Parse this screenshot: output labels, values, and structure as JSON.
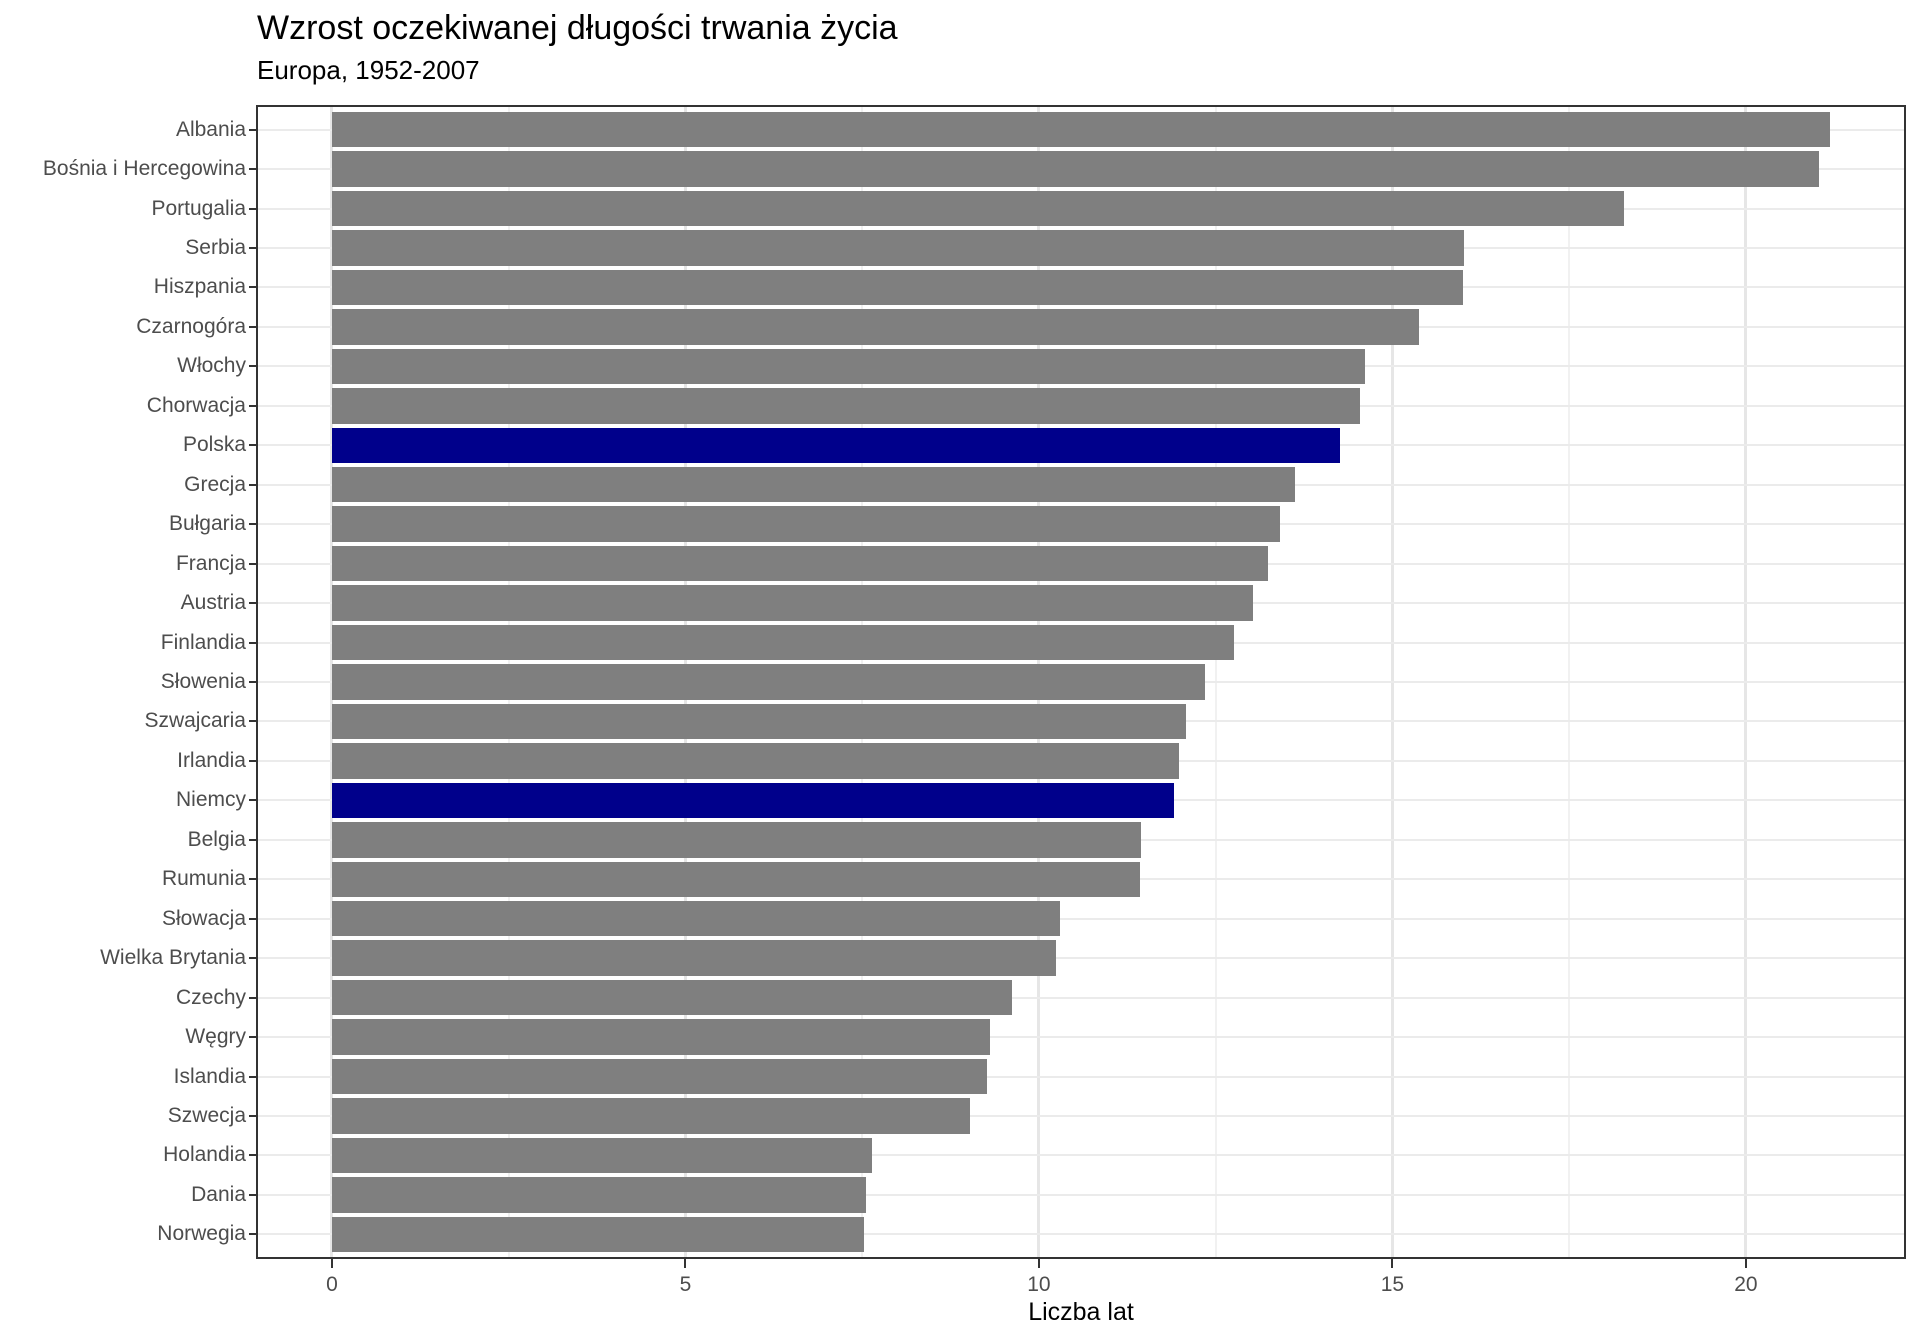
{
  "title": "Wzrost oczekiwanej długości trwania życia",
  "subtitle": "Europa, 1952-2007",
  "chart_data": {
    "type": "bar",
    "orientation": "horizontal",
    "title": "Wzrost oczekiwanej długości trwania życia",
    "subtitle": "Europa, 1952-2007",
    "xlabel": "Liczba lat",
    "ylabel": "",
    "xlim": [
      -1.06,
      22.25
    ],
    "x_major_ticks": [
      0,
      5,
      10,
      15,
      20
    ],
    "x_minor_gridlines": [
      2.5,
      7.5,
      12.5,
      17.5
    ],
    "grid": true,
    "legend": false,
    "categories": [
      "Albania",
      "Bośnia i Hercegowina",
      "Portugalia",
      "Serbia",
      "Hiszpania",
      "Czarnogóra",
      "Włochy",
      "Chorwacja",
      "Polska",
      "Grecja",
      "Bułgaria",
      "Francja",
      "Austria",
      "Finlandia",
      "Słowenia",
      "Szwajcaria",
      "Irlandia",
      "Niemcy",
      "Belgia",
      "Rumunia",
      "Słowacja",
      "Wielka Brytania",
      "Czechy",
      "Węgry",
      "Islandia",
      "Szwecja",
      "Holandia",
      "Dania",
      "Norwegia"
    ],
    "values": [
      21.193,
      21.032,
      18.278,
      16.006,
      16.001,
      15.379,
      14.606,
      14.538,
      14.253,
      13.623,
      13.405,
      13.247,
      13.029,
      12.763,
      12.356,
      12.081,
      11.975,
      11.906,
      11.441,
      11.426,
      10.303,
      10.245,
      9.616,
      9.308,
      9.267,
      9.024,
      7.632,
      7.552,
      7.526
    ],
    "highlighted_categories": [
      "Polska",
      "Niemcy"
    ],
    "colors": {
      "bar_default": "#7f7f7f",
      "bar_highlight": "#00008b",
      "panel_border": "#333333",
      "grid_major": "#e6e6e6",
      "grid_minor": "#f1f1f1",
      "axis_text": "#4d4d4d",
      "title_text": "#000000"
    }
  }
}
